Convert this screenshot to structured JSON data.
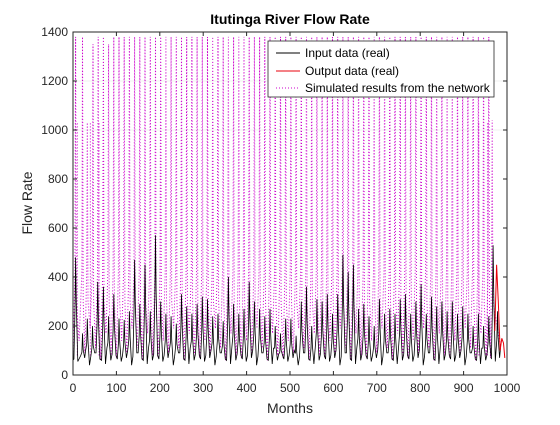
{
  "chart_data": {
    "type": "line",
    "title": "Itutinga River Flow Rate",
    "xlabel": "Months",
    "ylabel": "Flow Rate",
    "xlim": [
      0,
      1000
    ],
    "ylim": [
      0,
      1400
    ],
    "xticks": [
      "0",
      "100",
      "200",
      "300",
      "400",
      "500",
      "600",
      "700",
      "800",
      "900",
      "1000"
    ],
    "yticks": [
      "0",
      "200",
      "400",
      "600",
      "800",
      "1000",
      "1200",
      "1400"
    ],
    "grid": false,
    "legend_position": "top-right",
    "colors": {
      "input": "#000000",
      "output": "#e8000b",
      "simulated": "#cc00cc",
      "axis": "#262626"
    },
    "legend": [
      {
        "name": "Input data (real)",
        "color": "#000000",
        "style": "solid"
      },
      {
        "name": "Output data (real)",
        "color": "#e8000b",
        "style": "solid"
      },
      {
        "name": "Simulated results from the network",
        "color": "#cc00cc",
        "style": "dotted"
      }
    ],
    "input_peaks": [
      {
        "x": 6,
        "y": 480
      },
      {
        "x": 22,
        "y": 170
      },
      {
        "x": 33,
        "y": 230
      },
      {
        "x": 45,
        "y": 200
      },
      {
        "x": 57,
        "y": 380
      },
      {
        "x": 70,
        "y": 360
      },
      {
        "x": 82,
        "y": 240
      },
      {
        "x": 94,
        "y": 330
      },
      {
        "x": 106,
        "y": 230
      },
      {
        "x": 118,
        "y": 225
      },
      {
        "x": 130,
        "y": 260
      },
      {
        "x": 142,
        "y": 470
      },
      {
        "x": 154,
        "y": 290
      },
      {
        "x": 166,
        "y": 450
      },
      {
        "x": 178,
        "y": 260
      },
      {
        "x": 190,
        "y": 570
      },
      {
        "x": 202,
        "y": 300
      },
      {
        "x": 214,
        "y": 250
      },
      {
        "x": 226,
        "y": 240
      },
      {
        "x": 238,
        "y": 210
      },
      {
        "x": 250,
        "y": 330
      },
      {
        "x": 262,
        "y": 280
      },
      {
        "x": 274,
        "y": 250
      },
      {
        "x": 286,
        "y": 290
      },
      {
        "x": 298,
        "y": 320
      },
      {
        "x": 310,
        "y": 310
      },
      {
        "x": 322,
        "y": 240
      },
      {
        "x": 334,
        "y": 250
      },
      {
        "x": 346,
        "y": 220
      },
      {
        "x": 358,
        "y": 400
      },
      {
        "x": 370,
        "y": 290
      },
      {
        "x": 382,
        "y": 250
      },
      {
        "x": 394,
        "y": 270
      },
      {
        "x": 406,
        "y": 380
      },
      {
        "x": 418,
        "y": 300
      },
      {
        "x": 430,
        "y": 270
      },
      {
        "x": 442,
        "y": 240
      },
      {
        "x": 454,
        "y": 270
      },
      {
        "x": 466,
        "y": 200
      },
      {
        "x": 478,
        "y": 170
      },
      {
        "x": 490,
        "y": 230
      },
      {
        "x": 502,
        "y": 230
      },
      {
        "x": 514,
        "y": 160
      },
      {
        "x": 526,
        "y": 300
      },
      {
        "x": 538,
        "y": 360
      },
      {
        "x": 550,
        "y": 200
      },
      {
        "x": 562,
        "y": 310
      },
      {
        "x": 574,
        "y": 300
      },
      {
        "x": 586,
        "y": 330
      },
      {
        "x": 598,
        "y": 250
      },
      {
        "x": 610,
        "y": 330
      },
      {
        "x": 622,
        "y": 490
      },
      {
        "x": 634,
        "y": 420
      },
      {
        "x": 646,
        "y": 450
      },
      {
        "x": 658,
        "y": 270
      },
      {
        "x": 670,
        "y": 290
      },
      {
        "x": 682,
        "y": 240
      },
      {
        "x": 694,
        "y": 200
      },
      {
        "x": 706,
        "y": 310
      },
      {
        "x": 718,
        "y": 250
      },
      {
        "x": 730,
        "y": 270
      },
      {
        "x": 742,
        "y": 250
      },
      {
        "x": 754,
        "y": 310
      },
      {
        "x": 766,
        "y": 330
      },
      {
        "x": 778,
        "y": 250
      },
      {
        "x": 790,
        "y": 300
      },
      {
        "x": 802,
        "y": 370
      },
      {
        "x": 814,
        "y": 250
      },
      {
        "x": 826,
        "y": 320
      },
      {
        "x": 838,
        "y": 280
      },
      {
        "x": 850,
        "y": 300
      },
      {
        "x": 862,
        "y": 260
      },
      {
        "x": 874,
        "y": 300
      },
      {
        "x": 886,
        "y": 250
      },
      {
        "x": 898,
        "y": 280
      },
      {
        "x": 910,
        "y": 250
      },
      {
        "x": 922,
        "y": 200
      },
      {
        "x": 934,
        "y": 250
      },
      {
        "x": 946,
        "y": 200
      },
      {
        "x": 958,
        "y": 240
      },
      {
        "x": 968,
        "y": 530
      },
      {
        "x": 978,
        "y": 260
      }
    ],
    "output_segment": [
      {
        "x": 972,
        "y": 180
      },
      {
        "x": 976,
        "y": 450
      },
      {
        "x": 980,
        "y": 300
      },
      {
        "x": 984,
        "y": 100
      },
      {
        "x": 988,
        "y": 150
      },
      {
        "x": 992,
        "y": 130
      },
      {
        "x": 995,
        "y": 70
      }
    ],
    "simulated_peaks": [
      {
        "x": 6,
        "y": 1380
      },
      {
        "x": 22,
        "y": 1380
      },
      {
        "x": 33,
        "y": 1030
      },
      {
        "x": 46,
        "y": 1350
      },
      {
        "x": 58,
        "y": 1380
      },
      {
        "x": 70,
        "y": 1380
      },
      {
        "x": 82,
        "y": 1350
      },
      {
        "x": 94,
        "y": 1380
      },
      {
        "x": 106,
        "y": 1380
      },
      {
        "x": 118,
        "y": 1380
      },
      {
        "x": 130,
        "y": 1380
      },
      {
        "x": 142,
        "y": 1380
      },
      {
        "x": 154,
        "y": 1380
      },
      {
        "x": 166,
        "y": 1380
      },
      {
        "x": 178,
        "y": 1380
      },
      {
        "x": 190,
        "y": 1380
      },
      {
        "x": 202,
        "y": 1380
      },
      {
        "x": 214,
        "y": 1380
      },
      {
        "x": 226,
        "y": 1380
      },
      {
        "x": 238,
        "y": 1380
      },
      {
        "x": 250,
        "y": 1380
      },
      {
        "x": 262,
        "y": 1380
      },
      {
        "x": 274,
        "y": 1380
      },
      {
        "x": 286,
        "y": 1380
      },
      {
        "x": 298,
        "y": 1380
      },
      {
        "x": 310,
        "y": 1380
      },
      {
        "x": 322,
        "y": 1380
      },
      {
        "x": 334,
        "y": 1380
      },
      {
        "x": 346,
        "y": 1380
      },
      {
        "x": 358,
        "y": 1380
      },
      {
        "x": 370,
        "y": 1380
      },
      {
        "x": 382,
        "y": 1380
      },
      {
        "x": 394,
        "y": 1380
      },
      {
        "x": 406,
        "y": 1380
      },
      {
        "x": 418,
        "y": 1380
      },
      {
        "x": 430,
        "y": 1380
      },
      {
        "x": 442,
        "y": 1380
      },
      {
        "x": 454,
        "y": 1380
      },
      {
        "x": 466,
        "y": 1380
      },
      {
        "x": 478,
        "y": 1380
      },
      {
        "x": 490,
        "y": 1380
      },
      {
        "x": 502,
        "y": 1380
      },
      {
        "x": 514,
        "y": 1380
      },
      {
        "x": 526,
        "y": 1380
      },
      {
        "x": 538,
        "y": 1380
      },
      {
        "x": 550,
        "y": 1380
      },
      {
        "x": 562,
        "y": 1380
      },
      {
        "x": 574,
        "y": 1380
      },
      {
        "x": 586,
        "y": 1380
      },
      {
        "x": 598,
        "y": 1380
      },
      {
        "x": 610,
        "y": 1380
      },
      {
        "x": 622,
        "y": 1380
      },
      {
        "x": 634,
        "y": 1380
      },
      {
        "x": 646,
        "y": 1380
      },
      {
        "x": 658,
        "y": 1380
      },
      {
        "x": 670,
        "y": 1380
      },
      {
        "x": 682,
        "y": 1380
      },
      {
        "x": 694,
        "y": 1380
      },
      {
        "x": 706,
        "y": 1380
      },
      {
        "x": 718,
        "y": 1380
      },
      {
        "x": 730,
        "y": 1380
      },
      {
        "x": 742,
        "y": 1380
      },
      {
        "x": 754,
        "y": 1380
      },
      {
        "x": 766,
        "y": 1380
      },
      {
        "x": 778,
        "y": 1380
      },
      {
        "x": 790,
        "y": 1380
      },
      {
        "x": 802,
        "y": 1380
      },
      {
        "x": 814,
        "y": 1380
      },
      {
        "x": 826,
        "y": 1380
      },
      {
        "x": 838,
        "y": 1380
      },
      {
        "x": 850,
        "y": 1380
      },
      {
        "x": 862,
        "y": 1380
      },
      {
        "x": 874,
        "y": 1380
      },
      {
        "x": 886,
        "y": 1380
      },
      {
        "x": 898,
        "y": 1380
      },
      {
        "x": 910,
        "y": 1380
      },
      {
        "x": 922,
        "y": 1380
      },
      {
        "x": 934,
        "y": 1380
      },
      {
        "x": 946,
        "y": 1380
      },
      {
        "x": 958,
        "y": 1380
      },
      {
        "x": 966,
        "y": 1040
      }
    ],
    "simulated_secondary_peaks": [
      {
        "x": 10,
        "y": 1030
      },
      {
        "x": 40,
        "y": 1030
      },
      {
        "x": 60,
        "y": 1030
      },
      {
        "x": 935,
        "y": 1030
      },
      {
        "x": 955,
        "y": 1030
      }
    ]
  }
}
